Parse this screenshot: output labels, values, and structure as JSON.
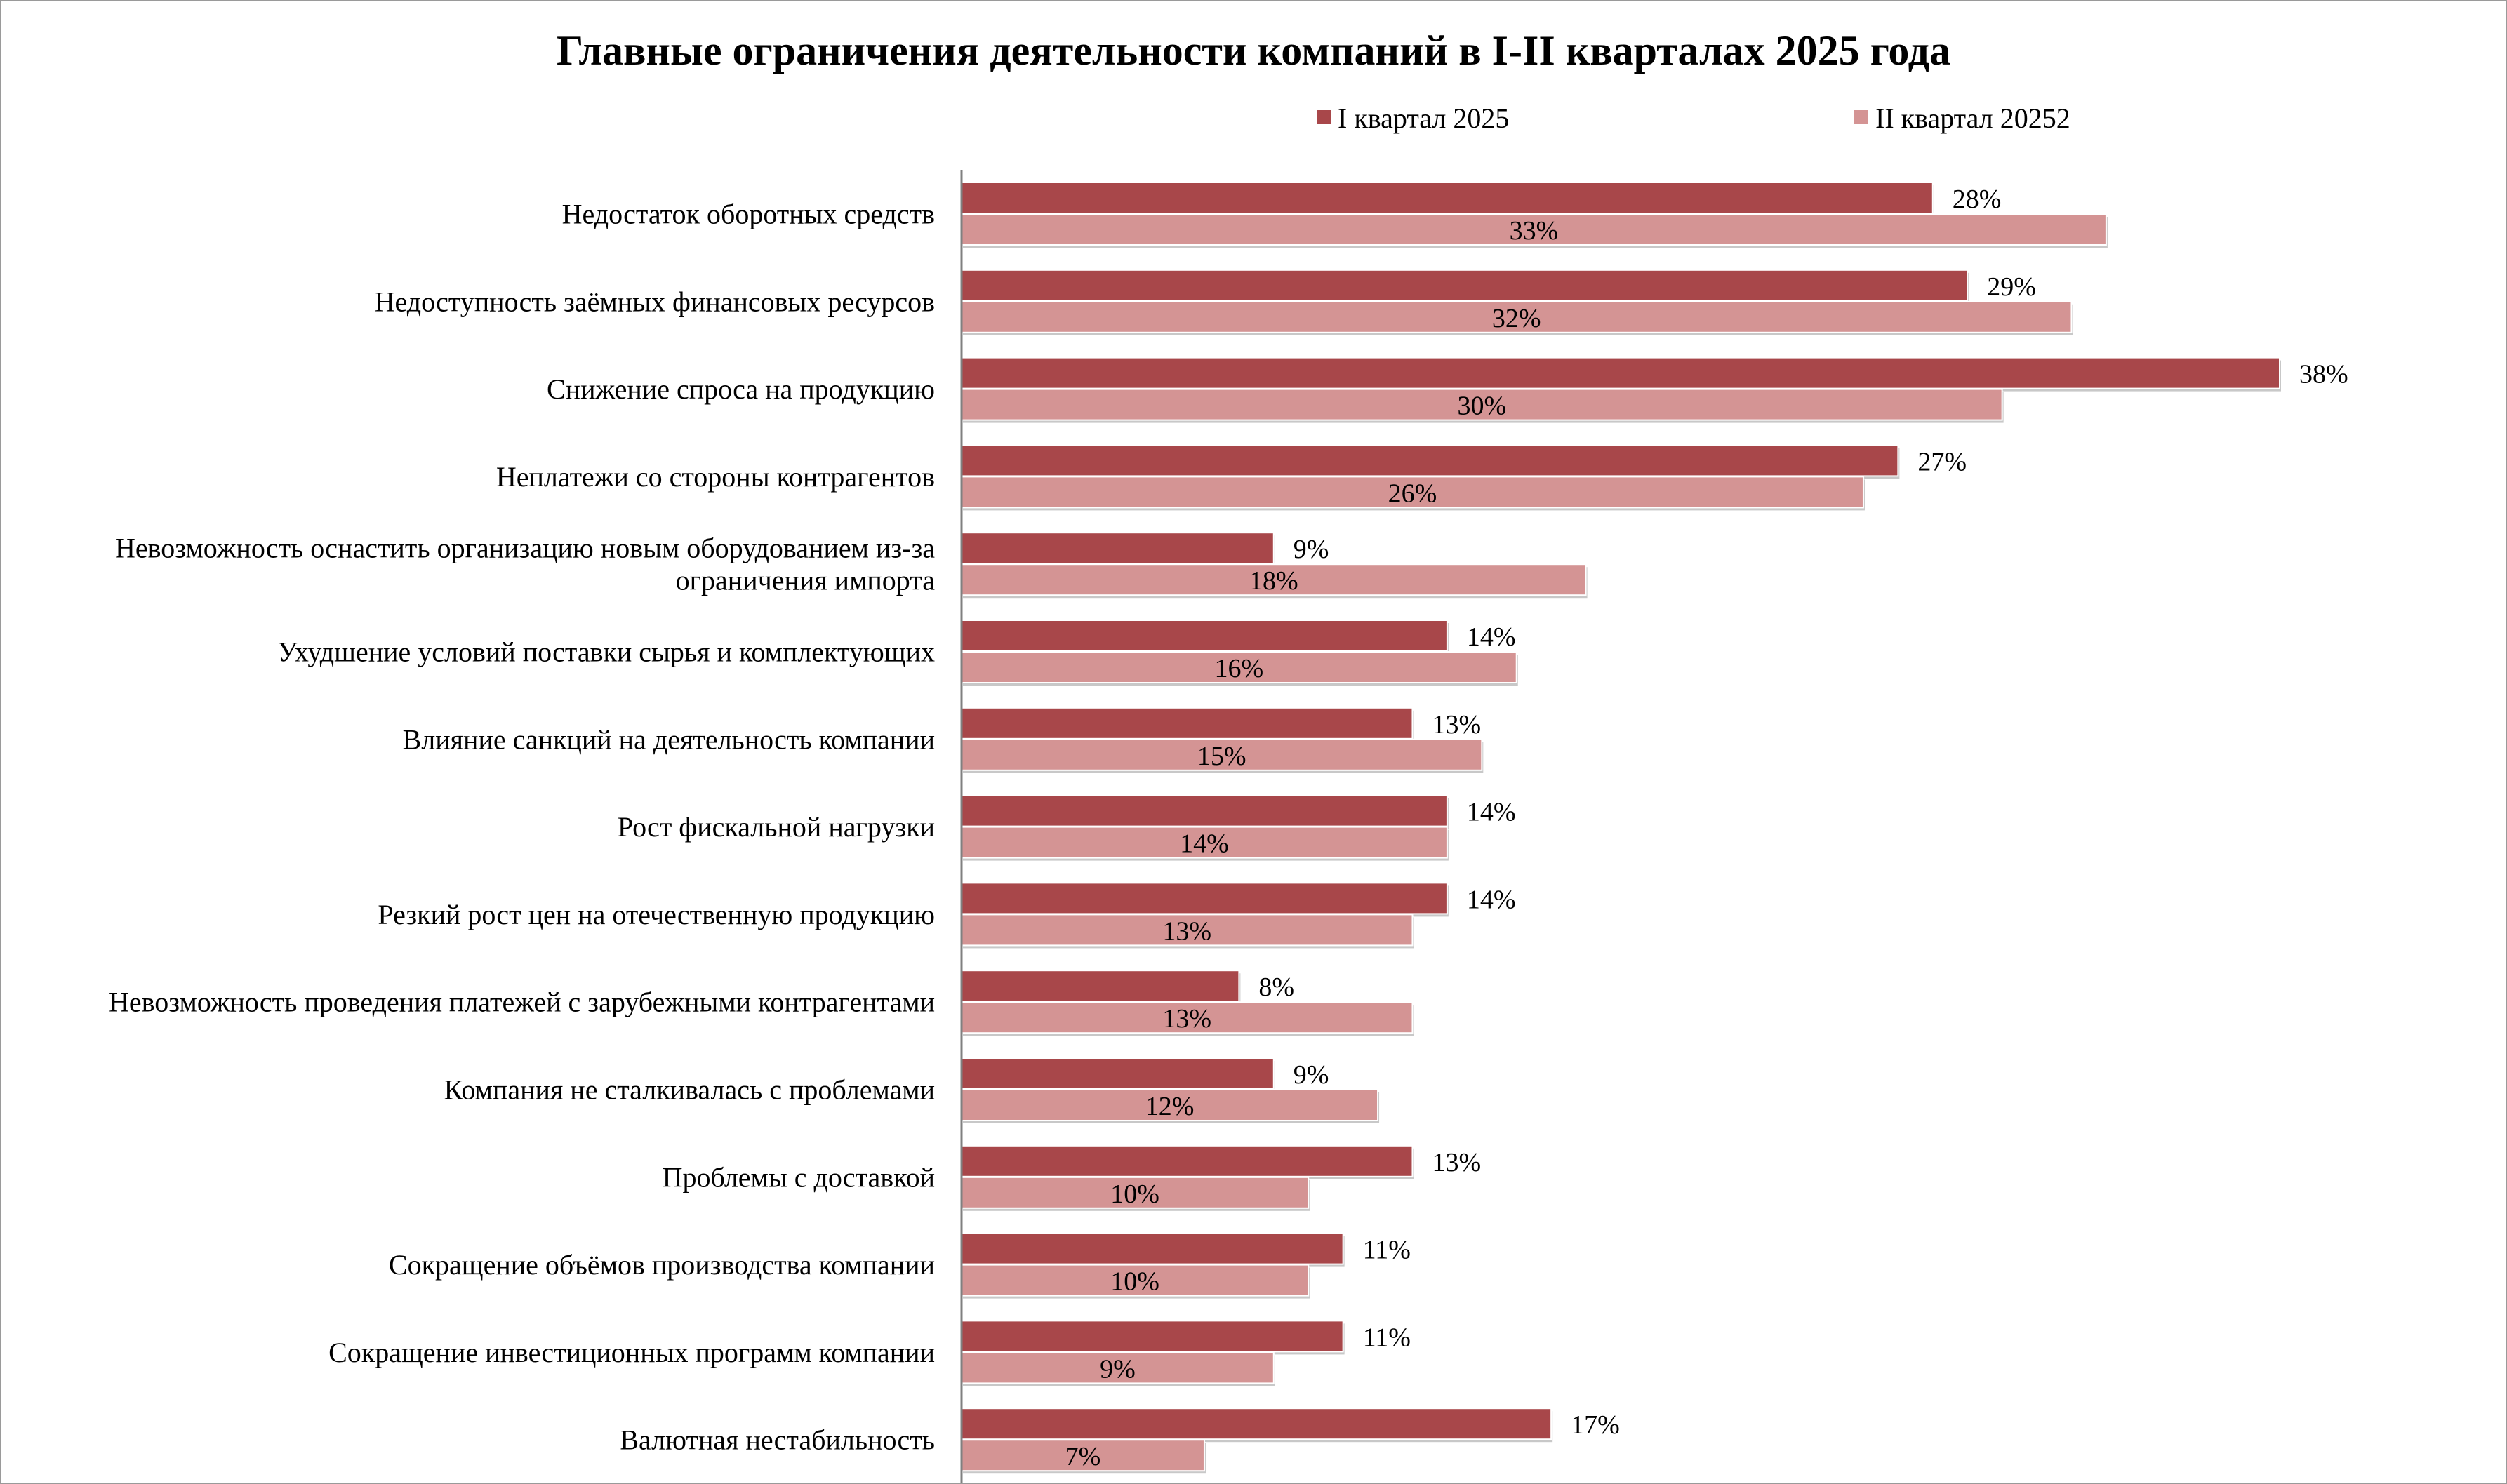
{
  "chart_data": {
    "type": "bar",
    "orientation": "horizontal",
    "title": "Главные ограничения деятельности компаний в I-II кварталах 2025 года",
    "legend_position": "top-right",
    "grid": false,
    "xlim": [
      0,
      38
    ],
    "categories": [
      [
        "Недостаток оборотных средств"
      ],
      [
        "Недоступность заёмных финансовых ресурсов"
      ],
      [
        "Снижение спроса на продукцию"
      ],
      [
        "Неплатежи со стороны контрагентов"
      ],
      [
        "Невозможность оснастить организацию новым оборудованием из-за",
        "ограничения импорта"
      ],
      [
        "Ухудшение условий поставки сырья и комплектующих"
      ],
      [
        "Влияние санкций на деятельность компании"
      ],
      [
        "Рост фискальной нагрузки"
      ],
      [
        "Резкий рост цен на отечественную продукцию"
      ],
      [
        "Невозможность проведения платежей с зарубежными контрагентами"
      ],
      [
        "Компания не сталкивалась с проблемами"
      ],
      [
        "Проблемы с доставкой"
      ],
      [
        "Сокращение объёмов производства компании"
      ],
      [
        "Сокращение инвестиционных программ компании"
      ],
      [
        "Валютная нестабильность"
      ]
    ],
    "series": [
      {
        "name": "I квартал 2025",
        "color": "#a8474a",
        "values": [
          28,
          29,
          38,
          27,
          9,
          14,
          13,
          14,
          14,
          8,
          9,
          13,
          11,
          11,
          17
        ],
        "labels": [
          "28%",
          "29%",
          "38%",
          "27%",
          "9%",
          "14%",
          "13%",
          "14%",
          "14%",
          "8%",
          "9%",
          "13%",
          "11%",
          "11%",
          "17%"
        ],
        "label_position": "outside-end"
      },
      {
        "name": "II квартал 20252",
        "color": "#d49494",
        "values": [
          33,
          32,
          30,
          26,
          18,
          16,
          15,
          14,
          13,
          13,
          12,
          10,
          10,
          9,
          7
        ],
        "labels": [
          "33%",
          "32%",
          "30%",
          "26%",
          "18%",
          "16%",
          "15%",
          "14%",
          "13%",
          "13%",
          "12%",
          "10%",
          "10%",
          "9%",
          "7%"
        ],
        "label_position": "center"
      }
    ]
  }
}
